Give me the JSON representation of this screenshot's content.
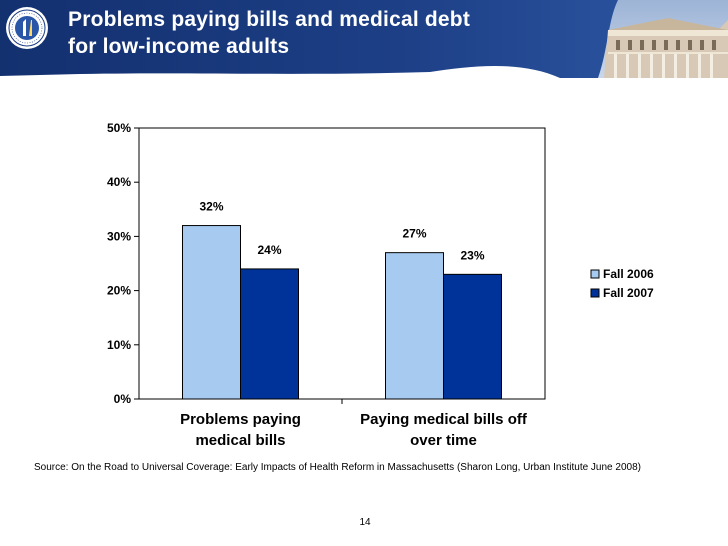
{
  "slide": {
    "title_line1": "Problems paying bills and medical debt",
    "title_line2": "for low-income adults",
    "source": "Source: On the Road to Universal Coverage: Early Impacts of Health Reform in Massachusetts (Sharon Long, Urban Institute June 2008)",
    "page_number": "14",
    "seal_icon": "massachusetts-seal-icon",
    "header_image": "state-house-photo"
  },
  "colors": {
    "header_dark": "#13306f",
    "header_light": "#2f5aa6",
    "fall_2006": "#a6caf0",
    "fall_2007": "#003399"
  },
  "chart_data": {
    "type": "bar",
    "categories": [
      [
        "Problems paying",
        "medical bills"
      ],
      [
        "Paying medical bills off",
        "over time"
      ]
    ],
    "series": [
      {
        "name": "Fall 2006",
        "values": [
          32,
          27
        ],
        "color": "#a6caf0"
      },
      {
        "name": "Fall 2007",
        "values": [
          24,
          23
        ],
        "color": "#003399"
      }
    ],
    "data_labels": [
      [
        "32%",
        "24%"
      ],
      [
        "27%",
        "23%"
      ]
    ],
    "y_ticks": [
      0,
      10,
      20,
      30,
      40,
      50
    ],
    "y_tick_labels": [
      "0%",
      "10%",
      "20%",
      "30%",
      "40%",
      "50%"
    ],
    "ylim": [
      0,
      50
    ],
    "grid": false,
    "legend_position": "right"
  }
}
